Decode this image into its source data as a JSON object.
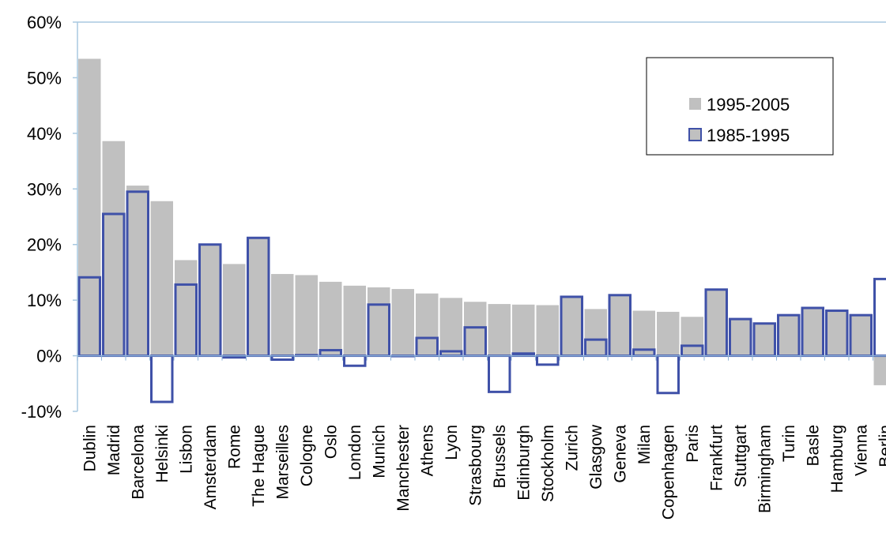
{
  "chart_data": {
    "type": "bar",
    "categories": [
      "Dublin",
      "Madrid",
      "Barcelona",
      "Helsinki",
      "Lisbon",
      "Amsterdam",
      "Rome",
      "The Hague",
      "Marseilles",
      "Cologne",
      "Oslo",
      "London",
      "Munich",
      "Manchester",
      "Athens",
      "Lyon",
      "Strasbourg",
      "Brussels",
      "Edinburgh",
      "Stockholm",
      "Zurich",
      "Glasgow",
      "Geneva",
      "Milan",
      "Copenhagen",
      "Paris",
      "Frankfurt",
      "Stuttgart",
      "Birmingham",
      "Turin",
      "Basle",
      "Hamburg",
      "Vienna",
      "Berlin"
    ],
    "series": [
      {
        "name": "1995-2005",
        "color": "#c0c0c0",
        "values": [
          53.4,
          38.6,
          30.6,
          27.8,
          17.2,
          20.0,
          16.5,
          21.2,
          14.7,
          14.5,
          13.3,
          12.6,
          12.3,
          12.0,
          11.2,
          10.4,
          9.7,
          9.3,
          9.2,
          9.1,
          10.6,
          8.4,
          10.9,
          8.1,
          7.9,
          7.0,
          11.9,
          6.6,
          5.8,
          7.3,
          8.6,
          8.1,
          7.3,
          -5.3
        ]
      },
      {
        "name": "1985-1995",
        "color": "#3f51a8",
        "values": [
          14.1,
          25.5,
          29.5,
          -8.3,
          12.8,
          20.0,
          -0.3,
          21.2,
          -0.7,
          0.1,
          1.0,
          -1.8,
          9.2,
          0.0,
          3.2,
          0.8,
          5.1,
          -6.5,
          0.4,
          -1.6,
          10.6,
          2.9,
          10.9,
          1.1,
          -6.7,
          1.8,
          11.9,
          6.6,
          5.8,
          7.3,
          8.6,
          8.1,
          7.3,
          13.8
        ]
      }
    ],
    "yticks": [
      "60%",
      "50%",
      "40%",
      "30%",
      "20%",
      "10%",
      "0%",
      "-10%"
    ],
    "ylim": [
      -10,
      60
    ],
    "grid": false,
    "legend_position": "top-right"
  }
}
